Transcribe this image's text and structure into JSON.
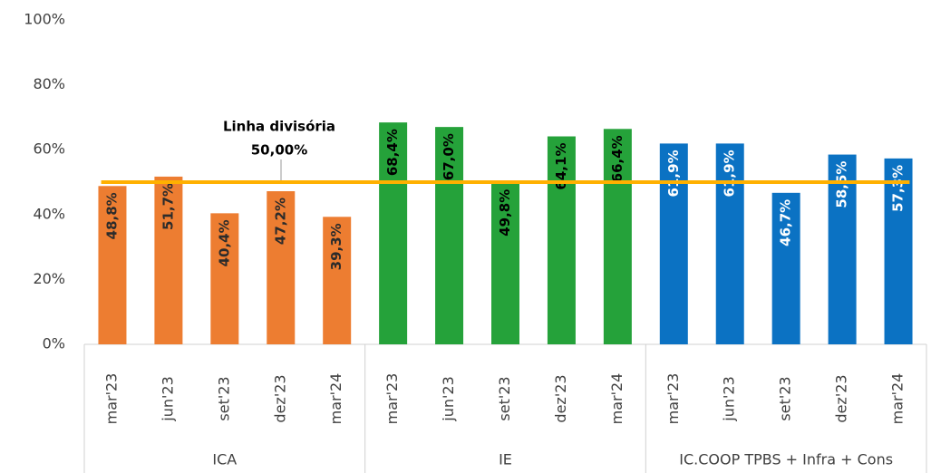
{
  "chart_data": {
    "type": "bar",
    "groups": [
      {
        "name": "ICA",
        "color": "#ED7D31",
        "label_color": "#2b2b2b",
        "categories": [
          "mar'23",
          "jun'23",
          "set'23",
          "dez'23",
          "mar'24"
        ],
        "values": [
          48.8,
          51.7,
          40.4,
          47.2,
          39.3
        ],
        "value_labels": [
          "48,8%",
          "51,7%",
          "40,4%",
          "47,2%",
          "39,3%"
        ]
      },
      {
        "name": "IE",
        "color": "#25A23A",
        "label_color": "#000000",
        "categories": [
          "mar'23",
          "jun'23",
          "set'23",
          "dez'23",
          "mar'24"
        ],
        "values": [
          68.4,
          67.0,
          49.8,
          64.1,
          66.4
        ],
        "value_labels": [
          "68,4%",
          "67,0%",
          "49,8%",
          "64,1%",
          "66,4%"
        ]
      },
      {
        "name": "IC.COOP TPBS + Infra + Cons",
        "color": "#0B72C3",
        "label_color": "#ffffff",
        "categories": [
          "mar'23",
          "jun'23",
          "set'23",
          "dez'23",
          "mar'24"
        ],
        "values": [
          61.9,
          61.9,
          46.7,
          58.5,
          57.3
        ],
        "value_labels": [
          "61,9%",
          "61,9%",
          "46,7%",
          "58,5%",
          "57,3%"
        ]
      }
    ],
    "reference_line": {
      "value": 50,
      "label": "Linha divisória",
      "value_label": "50,00%",
      "color": "#FFB000"
    },
    "ylim": [
      0,
      100
    ],
    "yticks": [
      {
        "value": 0,
        "label": "0%"
      },
      {
        "value": 20,
        "label": "20%"
      },
      {
        "value": 40,
        "label": "40%"
      },
      {
        "value": 60,
        "label": "60%"
      },
      {
        "value": 80,
        "label": "80%"
      },
      {
        "value": 100,
        "label": "100%"
      }
    ]
  }
}
